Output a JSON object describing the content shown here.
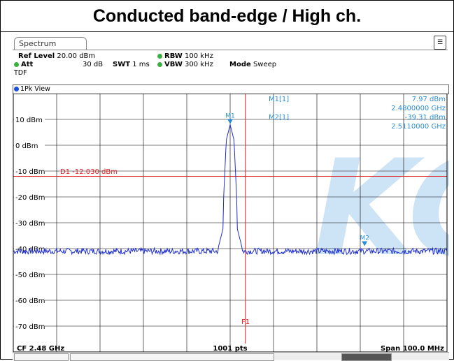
{
  "title": "Conducted band-edge / High ch.",
  "tab_label": "Spectrum",
  "menu_icon": "menu-icon",
  "header": {
    "ref_level_label": "Ref Level",
    "ref_level_value": "20.00 dBm",
    "att_label": "Att",
    "att_value": "30 dB",
    "swt_label": "SWT",
    "swt_value": "1 ms",
    "rbw_label": "RBW",
    "rbw_value": "100 kHz",
    "vbw_label": "VBW",
    "vbw_value": "300 kHz",
    "mode_label": "Mode",
    "mode_value": "Sweep",
    "tdf": "TDF"
  },
  "view_label": "1Pk View",
  "markers": {
    "m1_label": "M1[1]",
    "m1_level": "7.97 dBm",
    "m1_freq": "2.4800000 GHz",
    "m2_label": "M2[1]",
    "m2_level": "-39.31 dBm",
    "m2_freq": "2.5110000 GHz"
  },
  "display_line": {
    "label": "D1  -12.030 dBm",
    "value": -12.03
  },
  "freq_line_label": "F1",
  "footer": {
    "cf": "CF 2.48 GHz",
    "points": "1001 pts",
    "span": "Span 100.0 MHz"
  },
  "colors": {
    "trace": "#1f2fd1",
    "marker": "#2a8fd6",
    "display_line": "#e02020",
    "grid": "#000000",
    "watermark": "#1a7fd6"
  },
  "chart_data": {
    "type": "line",
    "x_unit": "GHz",
    "y_unit": "dBm",
    "xlim": [
      2.43,
      2.53
    ],
    "ylim": [
      -80,
      20
    ],
    "y_ticks": [
      {
        "value": 10,
        "label": "10 dBm"
      },
      {
        "value": 0,
        "label": "0 dBm"
      },
      {
        "value": -10,
        "label": "-10 dBm"
      },
      {
        "value": -20,
        "label": "-20 dBm"
      },
      {
        "value": -30,
        "label": "-30 dBm"
      },
      {
        "value": -40,
        "label": "-40 dBm"
      },
      {
        "value": -50,
        "label": "-50 dBm"
      },
      {
        "value": -60,
        "label": "-60 dBm"
      },
      {
        "value": -70,
        "label": "-70 dBm"
      }
    ],
    "grid": true,
    "noise_floor": -41,
    "peak": {
      "x": 2.48,
      "y": 7.97
    },
    "markers": [
      {
        "name": "M1",
        "x": 2.48,
        "y": 7.97
      },
      {
        "name": "M2",
        "x": 2.511,
        "y": -39.31
      }
    ],
    "display_line_y": -12.03,
    "frequency_line_x": 2.4835
  }
}
